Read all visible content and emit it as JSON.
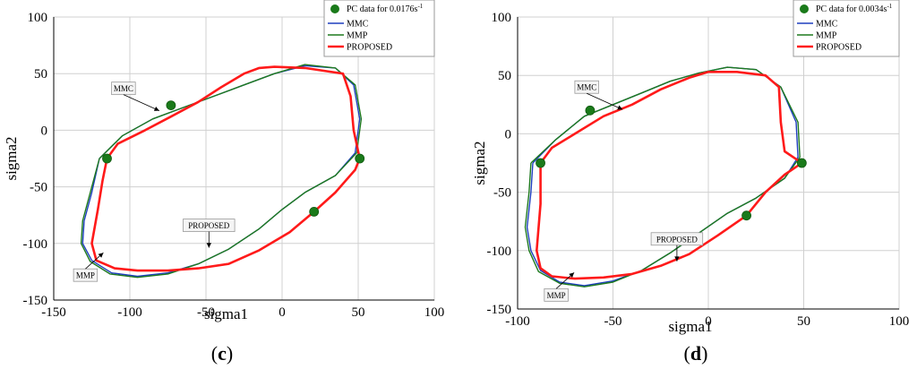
{
  "chart_data": [
    {
      "type": "line",
      "panel_label": "c",
      "xlabel": "sigma1",
      "ylabel": "sigma2",
      "xlim": [
        -150,
        100
      ],
      "ylim": [
        -150,
        100
      ],
      "xticks": [
        -150,
        -100,
        -50,
        0,
        50,
        100
      ],
      "yticks": [
        100,
        50,
        0,
        -50,
        -100,
        -150
      ],
      "grid": true,
      "legend_position": "top-right",
      "legend": {
        "marker_entry": {
          "prefix": "PC data for 0.0176s",
          "superscript": "-1"
        },
        "entries": [
          "MMC",
          "MMP",
          "PROPOSED"
        ]
      },
      "colors": {
        "MMC": "#1f3fbf",
        "MMP": "#1e7a1e",
        "PROPOSED": "#ff1a1a",
        "points": "#1a7a1a"
      },
      "points": {
        "x": [
          -115,
          -73,
          51,
          21
        ],
        "y": [
          -25,
          22,
          -25,
          -72
        ]
      },
      "series": [
        {
          "name": "MMC",
          "x": [
            -120,
            -105,
            -85,
            -65,
            -45,
            -25,
            -5,
            15,
            35,
            47,
            51,
            48,
            35,
            15,
            0,
            -15,
            -35,
            -55,
            -75,
            -95,
            -112,
            -125,
            -131,
            -130,
            -125,
            -120
          ],
          "y": [
            -25,
            -5,
            10,
            20,
            30,
            40,
            50,
            57,
            55,
            40,
            10,
            -20,
            -40,
            -55,
            -70,
            -87,
            -105,
            -118,
            -126,
            -129,
            -126,
            -115,
            -100,
            -80,
            -55,
            -25
          ]
        },
        {
          "name": "MMP",
          "x": [
            -120,
            -105,
            -85,
            -65,
            -45,
            -25,
            -5,
            15,
            35,
            48,
            52,
            49,
            35,
            15,
            0,
            -15,
            -35,
            -55,
            -75,
            -95,
            -113,
            -126,
            -132,
            -131,
            -126,
            -120
          ],
          "y": [
            -25,
            -5,
            10,
            20,
            30,
            40,
            50,
            58,
            55,
            40,
            10,
            -20,
            -40,
            -55,
            -70,
            -87,
            -105,
            -118,
            -127,
            -130,
            -127,
            -116,
            -100,
            -80,
            -55,
            -25
          ]
        },
        {
          "name": "PROPOSED",
          "x": [
            -115,
            -108,
            -90,
            -73,
            -55,
            -40,
            -25,
            -15,
            -5,
            15,
            40,
            45,
            47,
            51,
            48,
            35,
            21,
            5,
            -15,
            -35,
            -55,
            -75,
            -95,
            -110,
            -122,
            -125,
            -121,
            -118,
            -115
          ],
          "y": [
            -25,
            -12,
            0,
            12,
            25,
            38,
            50,
            55,
            56,
            55,
            50,
            30,
            0,
            -25,
            -35,
            -55,
            -72,
            -90,
            -106,
            -118,
            -122,
            -124,
            -124,
            -122,
            -115,
            -100,
            -70,
            -45,
            -25
          ]
        }
      ],
      "annotations": [
        {
          "text": "MMC",
          "x": -112,
          "y": 37
        },
        {
          "text": "PROPOSED",
          "x": -65,
          "y": -84
        },
        {
          "text": "MMP",
          "x": -137,
          "y": -128
        }
      ]
    },
    {
      "type": "line",
      "panel_label": "d",
      "xlabel": "sigma1",
      "ylabel": "sigma2",
      "xlim": [
        -100,
        100
      ],
      "ylim": [
        -150,
        100
      ],
      "xticks": [
        -100,
        -50,
        0,
        50,
        100
      ],
      "yticks": [
        100,
        50,
        0,
        -50,
        -100,
        -150
      ],
      "grid": true,
      "legend_position": "top-right",
      "legend": {
        "marker_entry": {
          "prefix": "PC data for 0.0034s",
          "superscript": "-1"
        },
        "entries": [
          "MMC",
          "MMP",
          "PROPOSED"
        ]
      },
      "colors": {
        "MMC": "#1f3fbf",
        "MMP": "#1e7a1e",
        "PROPOSED": "#ff1a1a",
        "points": "#1a7a1a"
      },
      "points": {
        "x": [
          -88,
          -62,
          49,
          20
        ],
        "y": [
          -25,
          20,
          -25,
          -70
        ]
      },
      "series": [
        {
          "name": "MMC",
          "x": [
            -92,
            -80,
            -65,
            -50,
            -35,
            -20,
            -5,
            10,
            25,
            38,
            46,
            47,
            40,
            25,
            10,
            -5,
            -20,
            -35,
            -50,
            -65,
            -78,
            -88,
            -93,
            -95,
            -93,
            -92
          ],
          "y": [
            -25,
            -5,
            15,
            25,
            35,
            45,
            52,
            57,
            55,
            40,
            10,
            -20,
            -38,
            -55,
            -68,
            -85,
            -102,
            -117,
            -126,
            -130,
            -127,
            -117,
            -100,
            -80,
            -50,
            -25
          ]
        },
        {
          "name": "MMP",
          "x": [
            -93,
            -80,
            -65,
            -50,
            -35,
            -20,
            -5,
            10,
            25,
            38,
            47,
            48,
            40,
            25,
            10,
            -5,
            -20,
            -35,
            -50,
            -65,
            -78,
            -89,
            -94,
            -96,
            -94,
            -93
          ],
          "y": [
            -25,
            -5,
            15,
            25,
            35,
            45,
            52,
            57,
            55,
            40,
            10,
            -20,
            -38,
            -55,
            -68,
            -85,
            -102,
            -117,
            -127,
            -131,
            -128,
            -118,
            -100,
            -80,
            -50,
            -25
          ]
        },
        {
          "name": "PROPOSED",
          "x": [
            -88,
            -82,
            -70,
            -55,
            -40,
            -25,
            -10,
            0,
            15,
            30,
            37,
            38,
            40,
            49,
            40,
            30,
            20,
            5,
            -10,
            -25,
            -40,
            -55,
            -70,
            -82,
            -88,
            -90,
            -88,
            -88
          ],
          "y": [
            -25,
            -12,
            0,
            15,
            25,
            38,
            48,
            53,
            53,
            50,
            40,
            10,
            -15,
            -25,
            -35,
            -50,
            -70,
            -87,
            -103,
            -113,
            -120,
            -123,
            -124,
            -122,
            -115,
            -100,
            -60,
            -25
          ]
        }
      ],
      "annotations": [
        {
          "text": "MMC",
          "x": -70,
          "y": 40
        },
        {
          "text": "PROPOSED",
          "x": -30,
          "y": -90
        },
        {
          "text": "MMP",
          "x": -86,
          "y": -138
        }
      ]
    }
  ]
}
